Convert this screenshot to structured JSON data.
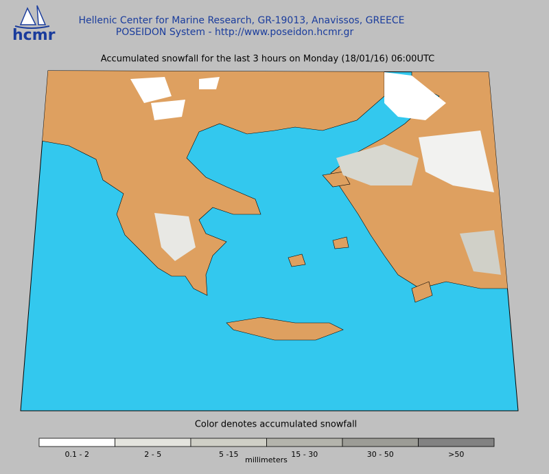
{
  "header": {
    "logo": "hcmr",
    "line1": "Hellenic Center for Marine Research, GR-19013, Anavissos, GREECE",
    "line2": "POSEIDON System - http://www.poseidon.hcmr.gr"
  },
  "map": {
    "title": "Accumulated snowfall for the last 3 hours on Monday (18/01/16) 06:00UTC"
  },
  "legend": {
    "caption": "Color denotes accumulated snowfall",
    "unit": "millimeters",
    "classes": [
      {
        "label": "0.1 - 2",
        "color": "#ffffff"
      },
      {
        "label": "2 - 5",
        "color": "#e4e4de"
      },
      {
        "label": "5 -15",
        "color": "#cfcfc6"
      },
      {
        "label": "15 - 30",
        "color": "#b4b4ac"
      },
      {
        "label": "30 - 50",
        "color": "#9c9c96"
      },
      {
        "label": ">50",
        "color": "#828282"
      }
    ]
  }
}
